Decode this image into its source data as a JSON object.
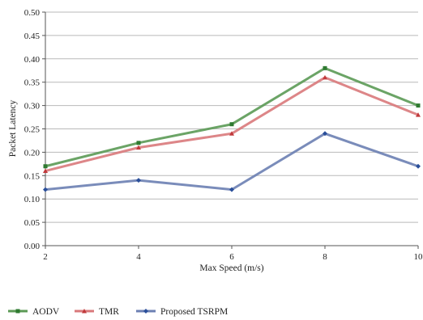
{
  "chart_data": {
    "type": "line",
    "title": "",
    "xlabel": "Max Speed (m/s)",
    "ylabel": "Packet Latency",
    "x": [
      2,
      4,
      6,
      8,
      10
    ],
    "xlim": [
      2,
      10
    ],
    "ylim": [
      0,
      0.5
    ],
    "y_ticks": [
      "0.00",
      "0.05",
      "0.10",
      "0.15",
      "0.20",
      "0.25",
      "0.30",
      "0.35",
      "0.40",
      "0.45",
      "0.50"
    ],
    "x_ticks": [
      "2",
      "4",
      "6",
      "8",
      "10"
    ],
    "grid": "horizontal",
    "legend_position": "bottom",
    "series": [
      {
        "name": "AODV",
        "values": [
          0.17,
          0.22,
          0.26,
          0.38,
          0.3
        ],
        "color": "#5b9a55",
        "marker": "square"
      },
      {
        "name": "TMR",
        "values": [
          0.16,
          0.21,
          0.24,
          0.36,
          0.28
        ],
        "color": "#d9797b",
        "marker": "triangle"
      },
      {
        "name": "Proposed TSRPM",
        "values": [
          0.12,
          0.14,
          0.12,
          0.24,
          0.17
        ],
        "color": "#6c80b3",
        "marker": "diamond"
      }
    ]
  }
}
